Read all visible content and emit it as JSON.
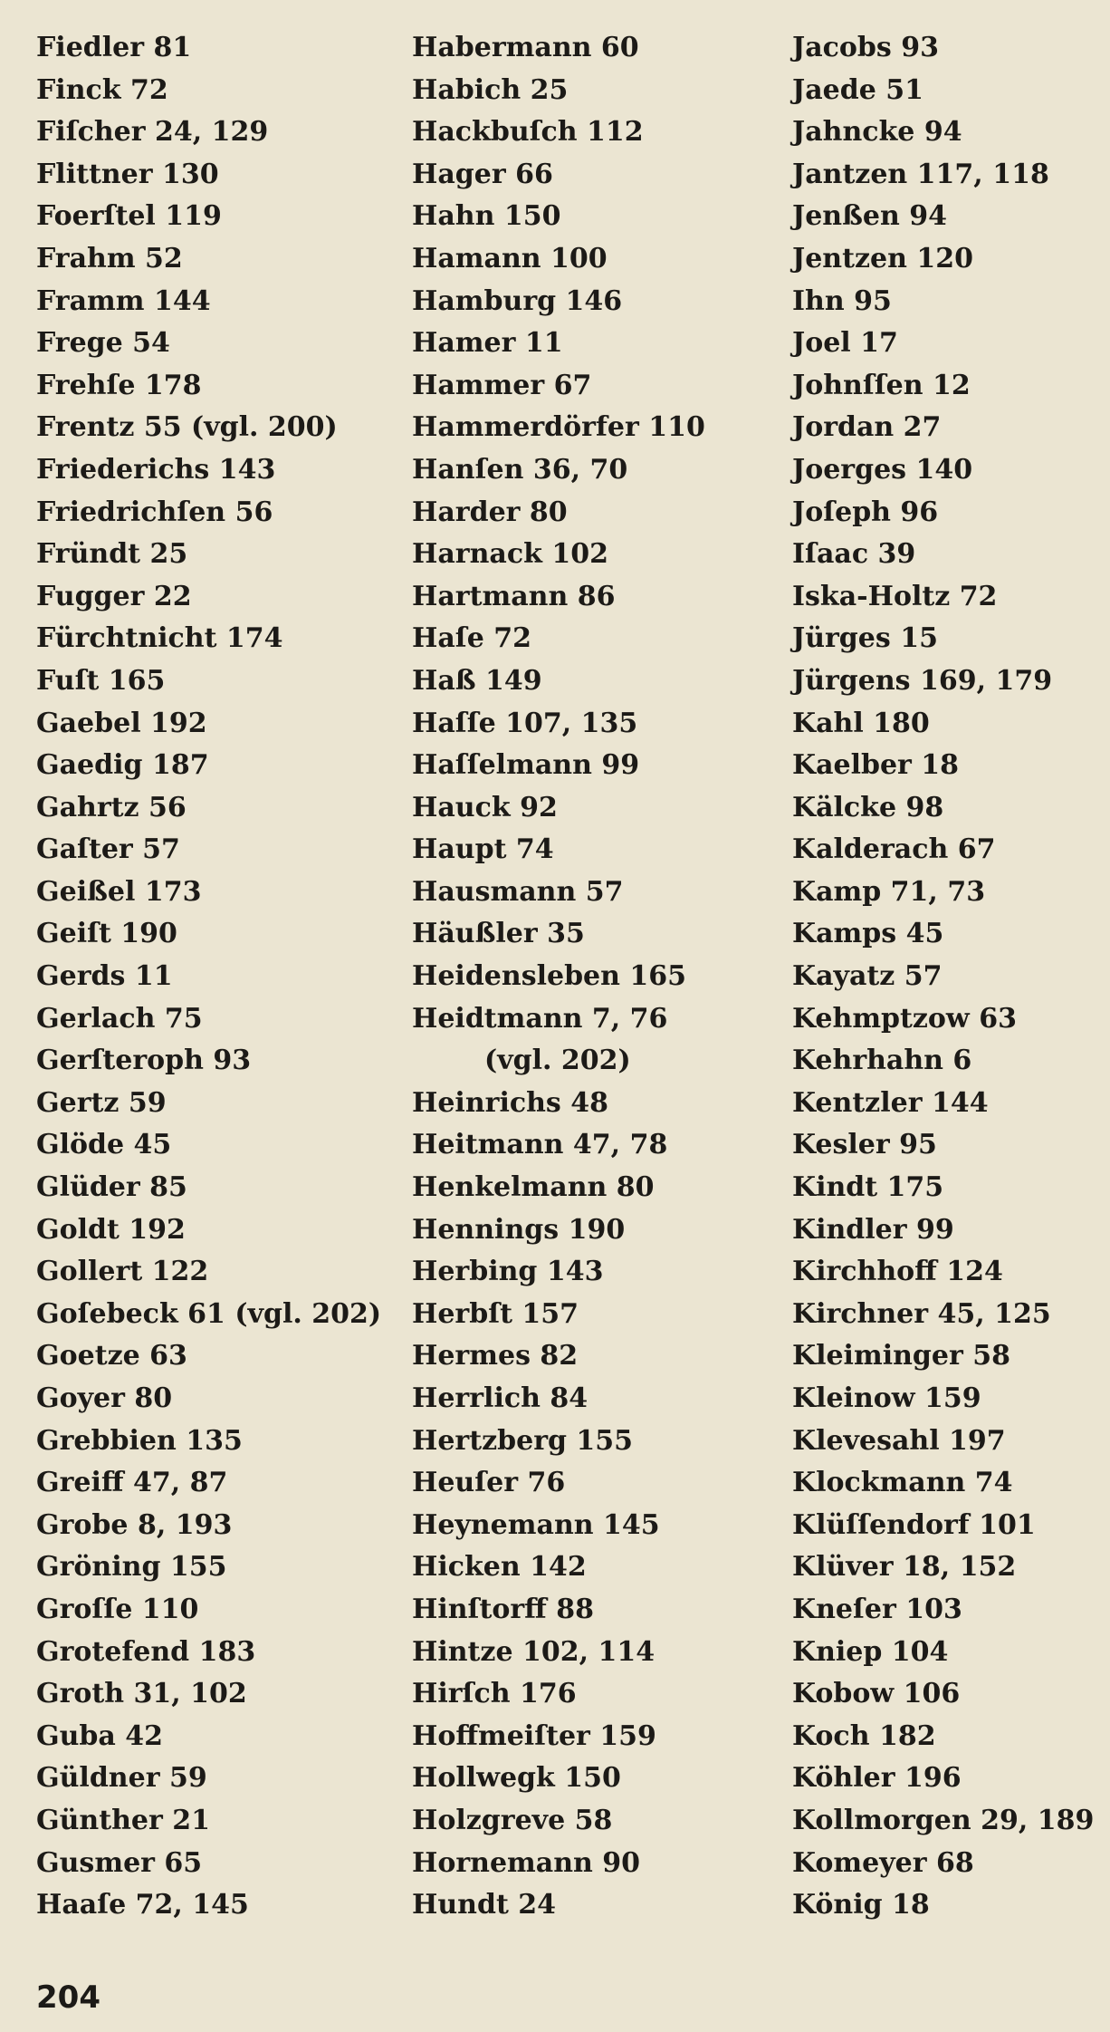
{
  "columns": [
    [
      "Fiedler 81",
      "Finck 72",
      "Fiſcher 24, 129",
      "Flittner 130",
      "Foerſtel 119",
      "Frahm 52",
      "Framm 144",
      "Frege 54",
      "Frehſe 178",
      "Frentz 55 (vgl. 200)",
      "Friederichs 143",
      "Friedrichſen 56",
      "Fründt 25",
      "Fugger 22",
      "Fürchtnicht 174",
      "Fuſt 165",
      "Gaebel 192",
      "Gaedig 187",
      "Gahrtz 56",
      "Gaſter 57",
      "Geißel 173",
      "Geiſt 190",
      "Gerds 11",
      "Gerlach 75",
      "Gerſteroph 93",
      "Gertz 59",
      "Glöde 45",
      "Glüder 85",
      "Goldt 192",
      "Gollert 122",
      "Goſebeck 61 (vgl. 202)",
      "Goetze 63",
      "Goyer 80",
      "Grebbien 135",
      "Greiff 47, 87",
      "Grobe 8, 193",
      "Gröning 155",
      "Groſſe 110",
      "Grotefend 183",
      "Groth 31, 102",
      "Guba 42",
      "Güldner 59",
      "Günther 21",
      "Gusmer 65",
      "Haaſe 72, 145"
    ],
    [
      "Habermann 60",
      "Habich 25",
      "Hackbuſch 112",
      "Hager 66",
      "Hahn 150",
      "Hamann 100",
      "Hamburg 146",
      "Hamer 11",
      "Hammer 67",
      "Hammerdörfer 110",
      "Hanſen 36, 70",
      "Harder 80",
      "Harnack 102",
      "Hartmann 86",
      "Haſe 72",
      "Haß 149",
      "Haſſe 107, 135",
      "Haſſelmann 99",
      "Hauck 92",
      "Haupt 74",
      "Hausmann 57",
      "Häußler 35",
      "Heidensleben 165",
      "Heidtmann 7, 76",
      "(vgl. 202)",
      "Heinrichs 48",
      "Heitmann 47, 78",
      "Henkelmann 80",
      "Hennings 190",
      "Herbing 143",
      "Herbſt 157",
      "Hermes 82",
      "Herrlich 84",
      "Hertzberg 155",
      "Heuſer 76",
      "Heynemann 145",
      "Hicken 142",
      "Hinſtorff 88",
      "Hintze 102, 114",
      "Hirſch 176",
      "Hoffmeiſter 159",
      "Hollwegk 150",
      "Holzgreve 58",
      "Hornemann 90",
      "Hundt 24"
    ],
    [
      "Jacobs 93",
      "Jaede 51",
      "Jahncke 94",
      "Jantzen 117, 118",
      "Jenßen 94",
      "Jentzen 120",
      "Ihn 95",
      "Joel 17",
      "Johnſſen 12",
      "Jordan 27",
      "Joerges 140",
      "Joſeph 96",
      "Iſaac 39",
      "Iska-Holtz 72",
      "Jürges 15",
      "Jürgens 169, 179",
      "Kahl 180",
      "Kaelber 18",
      "Kälcke 98",
      "Kalderach 67",
      "Kamp 71, 73",
      "Kamps 45",
      "Kayatz 57",
      "Kehmptzow 63",
      "Kehrhahn 6",
      "Kentzler 144",
      "Kesler 95",
      "Kindt 175",
      "Kindler 99",
      "Kirchhoff 124",
      "Kirchner 45, 125",
      "Kleiminger 58",
      "Kleinow 159",
      "Klevesahl 197",
      "Klockmann 74",
      "Klüſſendorf 101",
      "Klüver 18, 152",
      "Kneſer 103",
      "Kniep 104",
      "Kobow 106",
      "Koch 182",
      "Köhler 196",
      "Kollmorgen 29, 189",
      "Komeyer 68",
      "König 18"
    ]
  ],
  "page_number": "204"
}
